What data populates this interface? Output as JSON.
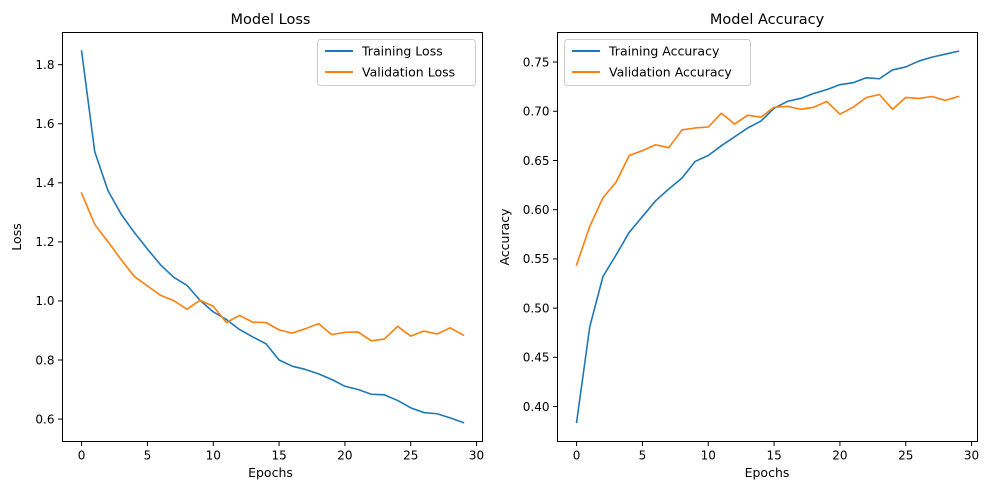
{
  "colors": {
    "training": "#1f77b4",
    "validation": "#ff7f0e"
  },
  "chart_data": [
    {
      "type": "line",
      "title": "Model Loss",
      "xlabel": "Epochs",
      "ylabel": "Loss",
      "xlim": [
        -1.45,
        30.45
      ],
      "ylim": [
        0.524,
        1.909
      ],
      "xticks": [
        0,
        5,
        10,
        15,
        20,
        25,
        30
      ],
      "yticks": [
        0.6,
        0.8,
        1.0,
        1.2,
        1.4,
        1.6,
        1.8
      ],
      "ytick_labels": [
        "0.6",
        "0.8",
        "1.0",
        "1.2",
        "1.4",
        "1.6",
        "1.8"
      ],
      "legend_position": "top-right",
      "grid": false,
      "x": [
        0,
        1,
        2,
        3,
        4,
        5,
        6,
        7,
        8,
        9,
        10,
        11,
        12,
        13,
        14,
        15,
        16,
        17,
        18,
        19,
        20,
        21,
        22,
        23,
        24,
        25,
        26,
        27,
        28,
        29
      ],
      "series": [
        {
          "name": "Training Loss",
          "color": "#1f77b4",
          "values": [
            1.846,
            1.505,
            1.374,
            1.294,
            1.232,
            1.176,
            1.122,
            1.08,
            1.053,
            1.002,
            0.963,
            0.937,
            0.903,
            0.878,
            0.855,
            0.8,
            0.779,
            0.768,
            0.753,
            0.734,
            0.711,
            0.7,
            0.684,
            0.682,
            0.663,
            0.638,
            0.622,
            0.618,
            0.604,
            0.588
          ]
        },
        {
          "name": "Validation Loss",
          "color": "#ff7f0e",
          "values": [
            1.365,
            1.259,
            1.201,
            1.14,
            1.083,
            1.051,
            1.019,
            1.001,
            0.972,
            1.002,
            0.982,
            0.927,
            0.951,
            0.928,
            0.927,
            0.902,
            0.891,
            0.906,
            0.923,
            0.886,
            0.894,
            0.895,
            0.865,
            0.871,
            0.914,
            0.881,
            0.898,
            0.888,
            0.909,
            0.884
          ]
        }
      ]
    },
    {
      "type": "line",
      "title": "Model Accuracy",
      "xlabel": "Epochs",
      "ylabel": "Accuracy",
      "xlim": [
        -1.45,
        30.45
      ],
      "ylim": [
        0.3645,
        0.78
      ],
      "xticks": [
        0,
        5,
        10,
        15,
        20,
        25,
        30
      ],
      "yticks": [
        0.4,
        0.45,
        0.5,
        0.55,
        0.6,
        0.65,
        0.7,
        0.75
      ],
      "ytick_labels": [
        "0.40",
        "0.45",
        "0.50",
        "0.55",
        "0.60",
        "0.65",
        "0.70",
        "0.75"
      ],
      "legend_position": "top-left",
      "grid": false,
      "x": [
        0,
        1,
        2,
        3,
        4,
        5,
        6,
        7,
        8,
        9,
        10,
        11,
        12,
        13,
        14,
        15,
        16,
        17,
        18,
        19,
        20,
        21,
        22,
        23,
        24,
        25,
        26,
        27,
        28,
        29
      ],
      "series": [
        {
          "name": "Training Accuracy",
          "color": "#1f77b4",
          "values": [
            0.384,
            0.481,
            0.532,
            0.554,
            0.577,
            0.593,
            0.609,
            0.621,
            0.632,
            0.649,
            0.655,
            0.665,
            0.674,
            0.683,
            0.69,
            0.703,
            0.71,
            0.713,
            0.718,
            0.722,
            0.727,
            0.729,
            0.734,
            0.733,
            0.742,
            0.745,
            0.751,
            0.755,
            0.758,
            0.761
          ]
        },
        {
          "name": "Validation Accuracy",
          "color": "#ff7f0e",
          "values": [
            0.544,
            0.583,
            0.612,
            0.628,
            0.655,
            0.66,
            0.666,
            0.663,
            0.681,
            0.683,
            0.684,
            0.698,
            0.687,
            0.696,
            0.694,
            0.704,
            0.705,
            0.702,
            0.704,
            0.71,
            0.697,
            0.704,
            0.714,
            0.717,
            0.702,
            0.714,
            0.713,
            0.715,
            0.711,
            0.715
          ]
        }
      ]
    }
  ]
}
